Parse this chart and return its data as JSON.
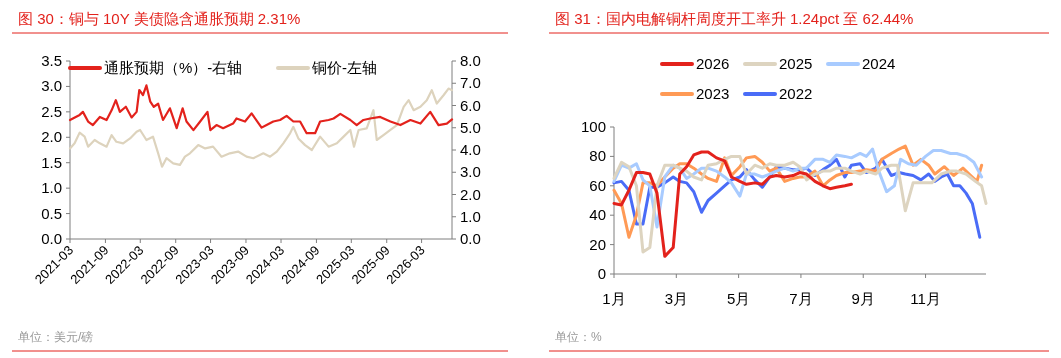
{
  "chart_data": [
    {
      "type": "line",
      "title": "图 30：铜与 10Y 美债隐含通胀预期 2.31%",
      "legend": "top",
      "xlim": [
        "2021-03-01",
        "2026-08-06"
      ],
      "xticks": [
        {
          "value": "2021-03",
          "label": "2021-03"
        },
        {
          "value": "2021-09",
          "label": "2021-09"
        },
        {
          "value": "2022-03",
          "label": "2022-03"
        },
        {
          "value": "2022-09",
          "label": "2022-09"
        },
        {
          "value": "2023-03",
          "label": "2023-03"
        },
        {
          "value": "2023-09",
          "label": "2023-09"
        },
        {
          "value": "2024-03",
          "label": "2024-03"
        },
        {
          "value": "2024-09",
          "label": "2024-09"
        },
        {
          "value": "2025-03",
          "label": "2025-03"
        },
        {
          "value": "2025-09",
          "label": "2025-09"
        },
        {
          "value": "2026-03",
          "label": "2026-03"
        }
      ],
      "ylim": [
        0,
        3.5
      ],
      "yticks": [
        {
          "value": 0,
          "label": "0.0"
        },
        0.5,
        {
          "value": 1,
          "label": "1.0"
        },
        1.5,
        {
          "value": 2,
          "label": "2.0"
        },
        2.5,
        {
          "value": 3,
          "label": "3.0"
        },
        3.5
      ],
      "y2lim": [
        0,
        8
      ],
      "y2ticks": [
        {
          "value": 0,
          "label": "0.0"
        },
        {
          "value": 1,
          "label": "1.0"
        },
        {
          "value": 2,
          "label": "2.0"
        },
        {
          "value": 3,
          "label": "3.0"
        },
        {
          "value": 4,
          "label": "4.0"
        },
        {
          "value": 5,
          "label": "5.0"
        },
        {
          "value": 6,
          "label": "6.0"
        },
        {
          "value": 7,
          "label": "7.0"
        },
        {
          "value": 8,
          "label": "8.0"
        }
      ],
      "annotations": [
        "单位：美元/磅"
      ],
      "series": [
        {
          "name": "通胀预期（%）-右轴",
          "color": "#e3221c",
          "x": [
            "2021-03-01",
            "2021-04-20",
            "2021-05-07",
            "2021-06-03",
            "2021-06-28",
            "2021-08-03",
            "2021-09-07",
            "2021-10-03",
            "2021-10-25",
            "2021-11-15",
            "2021-12-16",
            "2022-01-15",
            "2022-02-10",
            "2022-02-24",
            "2022-03-15",
            "2022-04-02",
            "2022-04-22",
            "2022-05-10",
            "2022-06-02",
            "2022-06-27",
            "2022-08-02",
            "2022-09-06",
            "2022-10-07",
            "2022-10-27",
            "2022-12-02",
            "2023-01-06",
            "2023-02-13",
            "2023-02-28",
            "2023-04-01",
            "2023-05-05",
            "2023-06-26",
            "2023-07-14",
            "2023-08-27",
            "2023-09-30",
            "2023-11-21",
            "2023-12-17",
            "2024-01-21",
            "2024-02-25",
            "2024-03-30",
            "2024-05-04",
            "2024-06-08",
            "2024-07-12",
            "2024-08-25",
            "2024-09-20",
            "2024-11-03",
            "2024-11-29",
            "2025-01-03",
            "2025-02-24",
            "2025-03-29",
            "2025-05-03",
            "2025-06-07",
            "2025-07-29",
            "2025-09-20",
            "2025-11-11",
            "2026-01-02",
            "2026-02-23",
            "2026-04-15",
            "2026-05-28",
            "2026-07-10",
            "2026-08-06"
          ],
          "values": [
            2.34,
            2.44,
            2.5,
            2.31,
            2.24,
            2.4,
            2.34,
            2.53,
            2.73,
            2.5,
            2.6,
            2.39,
            2.5,
            2.93,
            2.83,
            3.02,
            2.7,
            2.6,
            2.66,
            2.34,
            2.57,
            2.18,
            2.57,
            2.31,
            2.14,
            2.31,
            2.5,
            2.14,
            2.24,
            2.18,
            2.27,
            2.37,
            2.31,
            2.47,
            2.19,
            2.24,
            2.31,
            2.34,
            2.42,
            2.31,
            2.31,
            2.08,
            2.08,
            2.31,
            2.34,
            2.37,
            2.46,
            2.34,
            2.24,
            2.34,
            2.37,
            2.4,
            2.31,
            2.24,
            2.34,
            2.27,
            2.5,
            2.24,
            2.27,
            2.35
          ]
        },
        {
          "name": "铜价-左轴",
          "color": "#ddd3bd",
          "axis": "y2",
          "x": [
            "2021-03-01",
            "2021-03-25",
            "2021-04-20",
            "2021-05-16",
            "2021-06-03",
            "2021-07-07",
            "2021-08-03",
            "2021-09-07",
            "2021-10-03",
            "2021-10-28",
            "2021-12-02",
            "2022-01-07",
            "2022-02-10",
            "2022-02-28",
            "2022-04-02",
            "2022-05-06",
            "2022-06-02",
            "2022-06-22",
            "2022-07-15",
            "2022-08-19",
            "2022-09-23",
            "2022-10-19",
            "2022-11-14",
            "2022-12-27",
            "2023-02-01",
            "2023-03-14",
            "2023-04-27",
            "2023-06-09",
            "2023-07-22",
            "2023-09-04",
            "2023-10-09",
            "2023-11-30",
            "2024-01-04",
            "2024-02-08",
            "2024-03-13",
            "2024-04-17",
            "2024-05-04",
            "2024-05-30",
            "2024-07-04",
            "2024-08-08",
            "2024-09-20",
            "2024-11-03",
            "2024-12-16",
            "2025-01-20",
            "2025-02-24",
            "2025-03-15",
            "2025-04-08",
            "2025-05-20",
            "2025-06-24",
            "2025-07-11",
            "2025-08-15",
            "2025-09-20",
            "2025-10-24",
            "2025-11-28",
            "2025-12-24",
            "2026-01-19",
            "2026-02-23",
            "2026-03-28",
            "2026-04-23",
            "2026-05-19",
            "2026-06-23",
            "2026-07-19",
            "2026-08-06"
          ],
          "values": [
            4.07,
            4.3,
            4.78,
            4.6,
            4.15,
            4.45,
            4.3,
            4.15,
            4.67,
            4.37,
            4.3,
            4.52,
            4.82,
            4.9,
            4.45,
            4.6,
            3.85,
            3.25,
            3.63,
            3.4,
            3.33,
            3.7,
            3.85,
            4.22,
            4.07,
            4.15,
            3.7,
            3.85,
            3.93,
            3.7,
            3.63,
            3.85,
            3.7,
            3.93,
            4.3,
            4.75,
            5.04,
            4.52,
            4.22,
            4.0,
            4.6,
            4.15,
            4.3,
            4.6,
            4.9,
            4.15,
            4.9,
            4.97,
            5.79,
            4.45,
            4.67,
            4.9,
            5.12,
            5.94,
            6.24,
            5.79,
            5.94,
            6.24,
            6.69,
            6.09,
            6.46,
            6.76,
            6.69
          ]
        }
      ]
    },
    {
      "type": "line",
      "title": "图 31：国内电解铜杆周度开工率升 1.24pct 至 62.44%",
      "legend": "top",
      "xlim": [
        1,
        12.94
      ],
      "xticks": [
        {
          "value": 1,
          "label": "1月"
        },
        {
          "value": 3,
          "label": "3月"
        },
        {
          "value": 5,
          "label": "5月"
        },
        {
          "value": 7,
          "label": "7月"
        },
        {
          "value": 9,
          "label": "9月"
        },
        {
          "value": 11,
          "label": "11月"
        }
      ],
      "ylim": [
        0,
        100
      ],
      "yticks": [
        0,
        20,
        40,
        60,
        80,
        100
      ],
      "annotations": [
        "单位：%"
      ],
      "series": [
        {
          "name": "2026",
          "color": "#e3221c",
          "x": [
            1.0,
            1.24,
            1.48,
            1.72,
            1.93,
            2.15,
            2.38,
            2.63,
            2.9,
            3.11,
            3.33,
            3.56,
            3.81,
            4.02,
            4.29,
            4.55,
            4.77,
            5.04,
            5.25,
            5.52,
            5.76,
            6.0,
            6.21,
            6.48,
            6.75,
            6.96,
            7.18,
            7.45,
            7.71,
            7.93,
            8.14,
            8.41,
            8.62
          ],
          "values": [
            48,
            47,
            57,
            69,
            69,
            68,
            55,
            12,
            18,
            68,
            73,
            81,
            83,
            83,
            79,
            77,
            66,
            63,
            61,
            62,
            61,
            66,
            67,
            66,
            67,
            69,
            68,
            63,
            60,
            58,
            59,
            60,
            61
          ]
        },
        {
          "name": "2025",
          "color": "#ddd4c0",
          "x": [
            1.0,
            1.24,
            1.48,
            1.72,
            1.93,
            2.15,
            2.38,
            2.63,
            2.9,
            3.11,
            3.33,
            3.56,
            3.81,
            4.02,
            4.29,
            4.55,
            4.77,
            5.04,
            5.25,
            5.52,
            5.76,
            6.0,
            6.21,
            6.48,
            6.75,
            6.96,
            7.18,
            7.45,
            7.71,
            7.93,
            8.14,
            8.41,
            8.62,
            8.9,
            9.1,
            9.4,
            9.6,
            9.9,
            10.1,
            10.35,
            10.6,
            10.9,
            11.2,
            11.5,
            11.8,
            12.0,
            12.3,
            12.6,
            12.8,
            12.94
          ],
          "values": [
            65,
            76,
            73,
            60,
            15,
            18,
            60,
            74,
            74,
            72,
            70,
            66,
            64,
            74,
            75,
            78,
            80,
            80,
            68,
            74,
            72,
            75,
            74,
            74,
            76,
            73,
            64,
            68,
            70,
            70,
            72,
            72,
            70,
            68,
            70,
            68,
            72,
            74,
            74,
            43,
            62,
            62,
            62,
            68,
            70,
            70,
            68,
            63,
            60,
            48
          ]
        },
        {
          "name": "2024",
          "color": "#a8cbff",
          "x": [
            1.0,
            1.24,
            1.48,
            1.72,
            1.93,
            2.15,
            2.38,
            2.63,
            2.9,
            3.11,
            3.33,
            3.56,
            3.81,
            4.02,
            4.29,
            4.55,
            4.77,
            5.04,
            5.25,
            5.52,
            5.76,
            6.0,
            6.21,
            6.48,
            6.75,
            6.96,
            7.18,
            7.45,
            7.71,
            7.93,
            8.14,
            8.41,
            8.62,
            8.9,
            9.1,
            9.3,
            9.5,
            9.75,
            10.0,
            10.2,
            10.45,
            10.7,
            11.0,
            11.25,
            11.5,
            11.8,
            12.0,
            12.3,
            12.55,
            12.8
          ],
          "values": [
            63,
            74,
            72,
            75,
            64,
            60,
            32,
            66,
            74,
            72,
            65,
            68,
            72,
            72,
            70,
            66,
            62,
            53,
            68,
            68,
            66,
            68,
            70,
            72,
            70,
            72,
            72,
            78,
            78,
            76,
            81,
            80,
            79,
            82,
            80,
            85,
            70,
            56,
            60,
            78,
            75,
            74,
            80,
            84,
            84,
            82,
            82,
            80,
            76,
            66
          ]
        },
        {
          "name": "2023",
          "color": "#ff9a55",
          "x": [
            1.0,
            1.24,
            1.48,
            1.72,
            1.93,
            2.15,
            2.38,
            2.63,
            2.9,
            3.11,
            3.33,
            3.56,
            3.81,
            4.02,
            4.29,
            4.55,
            4.77,
            5.04,
            5.25,
            5.52,
            5.76,
            6.0,
            6.21,
            6.48,
            6.75,
            6.96,
            7.18,
            7.45,
            7.71,
            7.93,
            8.14,
            8.41,
            8.62,
            8.9,
            9.1,
            9.4,
            9.6,
            9.9,
            10.15,
            10.35,
            10.6,
            10.85,
            11.1,
            11.3,
            11.6,
            11.9,
            12.2,
            12.45,
            12.65,
            12.8
          ],
          "values": [
            57,
            48,
            25,
            40,
            62,
            62,
            60,
            66,
            72,
            75,
            75,
            72,
            68,
            65,
            63,
            79,
            67,
            73,
            79,
            80,
            76,
            70,
            72,
            63,
            65,
            66,
            66,
            70,
            60,
            64,
            67,
            69,
            69,
            70,
            71,
            70,
            78,
            82,
            85,
            87,
            74,
            78,
            74,
            68,
            73,
            67,
            72,
            67,
            63,
            74
          ]
        },
        {
          "name": "2022",
          "color": "#4a6cf7",
          "x": [
            1.0,
            1.24,
            1.48,
            1.72,
            1.93,
            2.15,
            2.38,
            2.63,
            2.9,
            3.11,
            3.33,
            3.56,
            3.81,
            4.02,
            4.29,
            4.55,
            4.77,
            5.04,
            5.25,
            5.52,
            5.76,
            6.0,
            6.21,
            6.48,
            6.75,
            6.96,
            7.18,
            7.45,
            7.71,
            7.93,
            8.14,
            8.41,
            8.62,
            8.9,
            9.1,
            9.4,
            9.6,
            9.9,
            10.15,
            10.35,
            10.6,
            10.85,
            11.1,
            11.3,
            11.5,
            11.7,
            11.9,
            12.1,
            12.3,
            12.5,
            12.74
          ],
          "values": [
            62,
            63,
            57,
            34,
            34,
            59,
            59,
            62,
            66,
            63,
            62,
            56,
            42,
            50,
            55,
            60,
            64,
            66,
            71,
            64,
            59,
            66,
            73,
            72,
            71,
            71,
            72,
            67,
            71,
            74,
            78,
            66,
            74,
            75,
            69,
            72,
            78,
            67,
            69,
            68,
            67,
            64,
            68,
            63,
            66,
            68,
            60,
            60,
            55,
            48,
            25
          ]
        }
      ]
    }
  ]
}
